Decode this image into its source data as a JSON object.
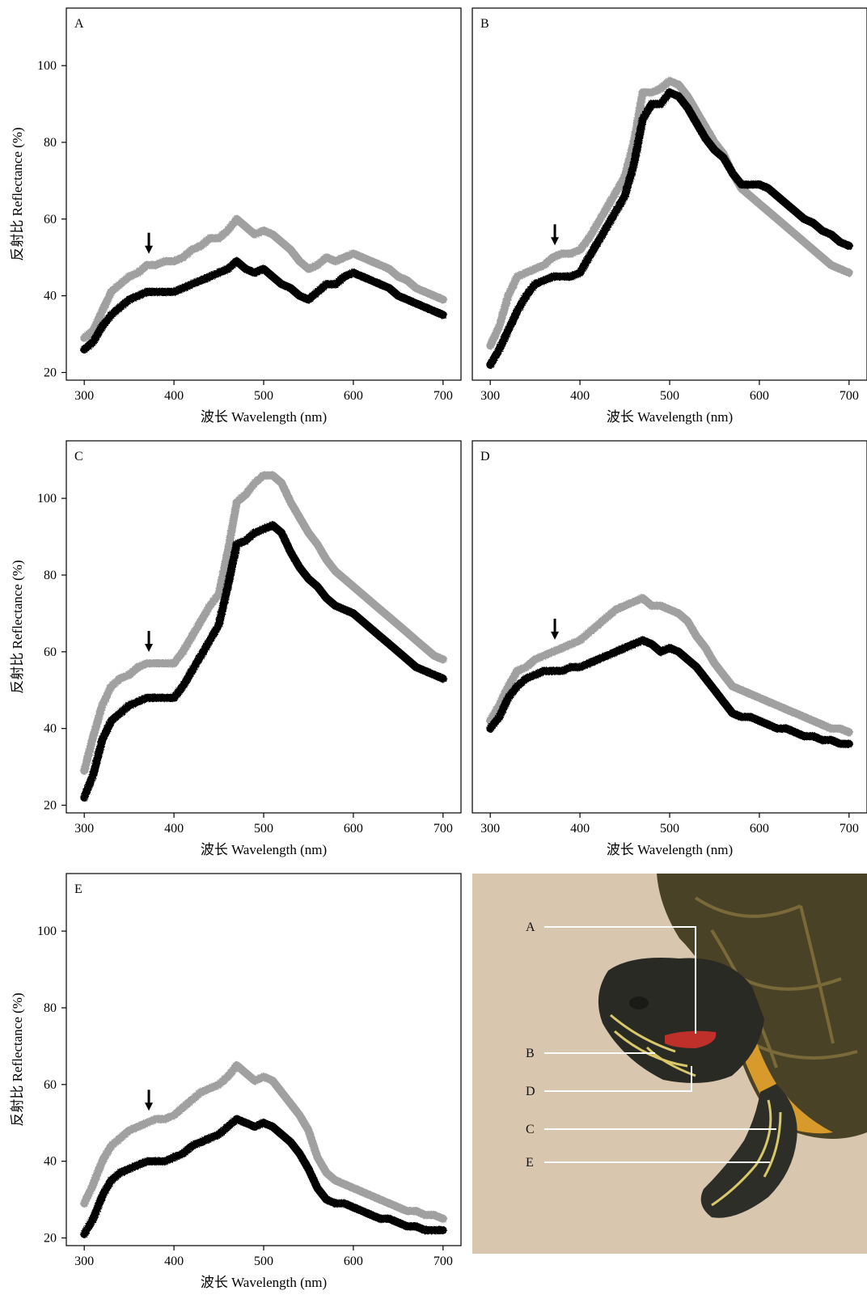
{
  "legend_colors": {
    "series_1": "#000000",
    "series_2": "#a0a0a0"
  },
  "photo": {
    "labels": [
      "A",
      "B",
      "D",
      "C",
      "E"
    ],
    "colors": {
      "background": "#d8c6ae",
      "shell": "#4a4226",
      "skin": "#2a2a24",
      "red_stripe": "#c0302a",
      "yellow_stripe": "#d8c86a",
      "plastron": "#d89a2a"
    }
  },
  "chart_data": [
    {
      "type": "line",
      "panel": "A",
      "xlabel": "波长 Wavelength (nm)",
      "ylabel": "反射比 Reflectance (%)",
      "xlim": [
        280,
        720
      ],
      "ylim": [
        18,
        115
      ],
      "xticks": [
        300,
        400,
        500,
        600,
        700
      ],
      "yticks": [
        20,
        40,
        60,
        80,
        100
      ],
      "arrow_x": 372,
      "series": [
        {
          "color": "#a0a0a0",
          "x": [
            300,
            310,
            320,
            330,
            340,
            350,
            360,
            370,
            380,
            390,
            400,
            410,
            420,
            430,
            440,
            450,
            460,
            470,
            480,
            490,
            500,
            510,
            520,
            530,
            540,
            550,
            560,
            570,
            580,
            590,
            600,
            610,
            620,
            630,
            640,
            650,
            660,
            670,
            680,
            690,
            700
          ],
          "y": [
            29,
            31,
            36,
            41,
            43,
            45,
            46,
            48,
            48,
            49,
            49,
            50,
            52,
            53,
            55,
            55,
            57,
            60,
            58,
            56,
            57,
            56,
            54,
            52,
            49,
            47,
            48,
            50,
            49,
            50,
            51,
            50,
            49,
            48,
            47,
            45,
            44,
            42,
            41,
            40,
            39
          ]
        },
        {
          "color": "#000000",
          "x": [
            300,
            310,
            320,
            330,
            340,
            350,
            360,
            370,
            380,
            390,
            400,
            410,
            420,
            430,
            440,
            450,
            460,
            470,
            480,
            490,
            500,
            510,
            520,
            530,
            540,
            550,
            560,
            570,
            580,
            590,
            600,
            610,
            620,
            630,
            640,
            650,
            660,
            670,
            680,
            690,
            700
          ],
          "y": [
            26,
            28,
            32,
            35,
            37,
            39,
            40,
            41,
            41,
            41,
            41,
            42,
            43,
            44,
            45,
            46,
            47,
            49,
            47,
            46,
            47,
            45,
            43,
            42,
            40,
            39,
            41,
            43,
            43,
            45,
            46,
            45,
            44,
            43,
            42,
            40,
            39,
            38,
            37,
            36,
            35
          ]
        }
      ]
    },
    {
      "type": "line",
      "panel": "B",
      "xlabel": "波长 Wavelength (nm)",
      "ylabel": "",
      "xlim": [
        280,
        720
      ],
      "ylim": [
        18,
        115
      ],
      "xticks": [
        300,
        400,
        500,
        600,
        700
      ],
      "yticks": [],
      "arrow_x": 372,
      "series": [
        {
          "color": "#a0a0a0",
          "x": [
            300,
            310,
            320,
            330,
            340,
            350,
            360,
            370,
            380,
            390,
            400,
            410,
            420,
            430,
            440,
            450,
            460,
            470,
            480,
            490,
            500,
            510,
            520,
            530,
            540,
            550,
            560,
            570,
            580,
            590,
            600,
            610,
            620,
            630,
            640,
            650,
            660,
            670,
            680,
            690,
            700
          ],
          "y": [
            27,
            32,
            40,
            45,
            46,
            47,
            48,
            50,
            51,
            51,
            52,
            55,
            59,
            63,
            67,
            71,
            80,
            93,
            93,
            94,
            96,
            95,
            92,
            88,
            84,
            80,
            77,
            72,
            68,
            66,
            64,
            62,
            60,
            58,
            56,
            54,
            52,
            50,
            48,
            47,
            46
          ]
        },
        {
          "color": "#000000",
          "x": [
            300,
            310,
            320,
            330,
            340,
            350,
            360,
            370,
            380,
            390,
            400,
            410,
            420,
            430,
            440,
            450,
            460,
            470,
            480,
            490,
            500,
            510,
            520,
            530,
            540,
            550,
            560,
            570,
            580,
            590,
            600,
            610,
            620,
            630,
            640,
            650,
            660,
            670,
            680,
            690,
            700
          ],
          "y": [
            22,
            26,
            31,
            36,
            40,
            43,
            44,
            45,
            45,
            45,
            46,
            50,
            54,
            58,
            62,
            66,
            74,
            86,
            90,
            90,
            93,
            92,
            89,
            85,
            81,
            78,
            76,
            72,
            69,
            69,
            69,
            68,
            66,
            64,
            62,
            60,
            59,
            57,
            56,
            54,
            53
          ]
        }
      ]
    },
    {
      "type": "line",
      "panel": "C",
      "xlabel": "波长 Wavelength (nm)",
      "ylabel": "反射比 Reflectance (%)",
      "xlim": [
        280,
        720
      ],
      "ylim": [
        18,
        115
      ],
      "xticks": [
        300,
        400,
        500,
        600,
        700
      ],
      "yticks": [
        20,
        40,
        60,
        80,
        100
      ],
      "arrow_x": 372,
      "series": [
        {
          "color": "#a0a0a0",
          "x": [
            300,
            310,
            320,
            330,
            340,
            350,
            360,
            370,
            380,
            390,
            400,
            410,
            420,
            430,
            440,
            450,
            460,
            470,
            480,
            490,
            500,
            510,
            520,
            530,
            540,
            550,
            560,
            570,
            580,
            590,
            600,
            610,
            620,
            630,
            640,
            650,
            660,
            670,
            680,
            690,
            700
          ],
          "y": [
            29,
            38,
            46,
            51,
            53,
            54,
            56,
            57,
            57,
            57,
            57,
            60,
            64,
            68,
            72,
            75,
            86,
            99,
            101,
            104,
            106,
            106,
            104,
            99,
            95,
            91,
            88,
            84,
            81,
            79,
            77,
            75,
            73,
            71,
            69,
            67,
            65,
            63,
            61,
            59,
            58
          ]
        },
        {
          "color": "#000000",
          "x": [
            300,
            310,
            320,
            330,
            340,
            350,
            360,
            370,
            380,
            390,
            400,
            410,
            420,
            430,
            440,
            450,
            460,
            470,
            480,
            490,
            500,
            510,
            520,
            530,
            540,
            550,
            560,
            570,
            580,
            590,
            600,
            610,
            620,
            630,
            640,
            650,
            660,
            670,
            680,
            690,
            700
          ],
          "y": [
            22,
            28,
            37,
            42,
            44,
            46,
            47,
            48,
            48,
            48,
            48,
            51,
            55,
            59,
            63,
            67,
            77,
            88,
            89,
            91,
            92,
            93,
            91,
            86,
            82,
            79,
            77,
            74,
            72,
            71,
            70,
            68,
            66,
            64,
            62,
            60,
            58,
            56,
            55,
            54,
            53
          ]
        }
      ]
    },
    {
      "type": "line",
      "panel": "D",
      "xlabel": "波长 Wavelength (nm)",
      "ylabel": "",
      "xlim": [
        280,
        720
      ],
      "ylim": [
        18,
        115
      ],
      "xticks": [
        300,
        400,
        500,
        600,
        700
      ],
      "yticks": [],
      "arrow_x": 372,
      "series": [
        {
          "color": "#a0a0a0",
          "x": [
            300,
            310,
            320,
            330,
            340,
            350,
            360,
            370,
            380,
            390,
            400,
            410,
            420,
            430,
            440,
            450,
            460,
            470,
            480,
            490,
            500,
            510,
            520,
            530,
            540,
            550,
            560,
            570,
            580,
            590,
            600,
            610,
            620,
            630,
            640,
            650,
            660,
            670,
            680,
            690,
            700
          ],
          "y": [
            42,
            46,
            51,
            55,
            56,
            58,
            59,
            60,
            61,
            62,
            63,
            65,
            67,
            69,
            71,
            72,
            73,
            74,
            72,
            72,
            71,
            70,
            68,
            64,
            61,
            57,
            54,
            51,
            50,
            49,
            48,
            47,
            46,
            45,
            44,
            43,
            42,
            41,
            40,
            40,
            39
          ]
        },
        {
          "color": "#000000",
          "x": [
            300,
            310,
            320,
            330,
            340,
            350,
            360,
            370,
            380,
            390,
            400,
            410,
            420,
            430,
            440,
            450,
            460,
            470,
            480,
            490,
            500,
            510,
            520,
            530,
            540,
            550,
            560,
            570,
            580,
            590,
            600,
            610,
            620,
            630,
            640,
            650,
            660,
            670,
            680,
            690,
            700
          ],
          "y": [
            40,
            43,
            48,
            51,
            53,
            54,
            55,
            55,
            55,
            56,
            56,
            57,
            58,
            59,
            60,
            61,
            62,
            63,
            62,
            60,
            61,
            60,
            58,
            56,
            53,
            50,
            47,
            44,
            43,
            43,
            42,
            41,
            40,
            40,
            39,
            38,
            38,
            37,
            37,
            36,
            36
          ]
        }
      ]
    },
    {
      "type": "line",
      "panel": "E",
      "xlabel": "波长 Wavelength (nm)",
      "ylabel": "反射比 Reflectance (%)",
      "xlim": [
        280,
        720
      ],
      "ylim": [
        18,
        115
      ],
      "xticks": [
        300,
        400,
        500,
        600,
        700
      ],
      "yticks": [
        20,
        40,
        60,
        80,
        100
      ],
      "arrow_x": 372,
      "series": [
        {
          "color": "#a0a0a0",
          "x": [
            300,
            310,
            320,
            330,
            340,
            350,
            360,
            370,
            380,
            390,
            400,
            410,
            420,
            430,
            440,
            450,
            460,
            470,
            480,
            490,
            500,
            510,
            520,
            530,
            540,
            550,
            560,
            570,
            580,
            590,
            600,
            610,
            620,
            630,
            640,
            650,
            660,
            670,
            680,
            690,
            700
          ],
          "y": [
            29,
            34,
            40,
            44,
            46,
            48,
            49,
            50,
            51,
            51,
            52,
            54,
            56,
            58,
            59,
            60,
            62,
            65,
            63,
            61,
            62,
            61,
            58,
            55,
            52,
            48,
            41,
            37,
            35,
            34,
            33,
            32,
            31,
            30,
            29,
            28,
            27,
            27,
            26,
            26,
            25
          ]
        },
        {
          "color": "#000000",
          "x": [
            300,
            310,
            320,
            330,
            340,
            350,
            360,
            370,
            380,
            390,
            400,
            410,
            420,
            430,
            440,
            450,
            460,
            470,
            480,
            490,
            500,
            510,
            520,
            530,
            540,
            550,
            560,
            570,
            580,
            590,
            600,
            610,
            620,
            630,
            640,
            650,
            660,
            670,
            680,
            690,
            700
          ],
          "y": [
            21,
            25,
            31,
            35,
            37,
            38,
            39,
            40,
            40,
            40,
            41,
            42,
            44,
            45,
            46,
            47,
            49,
            51,
            50,
            49,
            50,
            49,
            47,
            45,
            42,
            38,
            33,
            30,
            29,
            29,
            28,
            27,
            26,
            25,
            25,
            24,
            23,
            23,
            22,
            22,
            22
          ]
        }
      ]
    }
  ]
}
